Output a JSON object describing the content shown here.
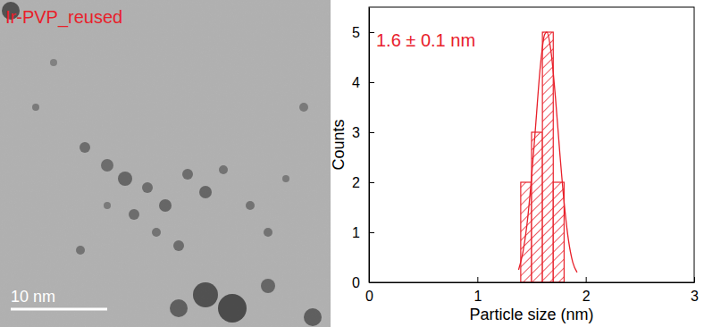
{
  "chart_data": [
    {
      "type": "image",
      "title": "Ir-PVP_reused",
      "scale_bar_label": "10 nm",
      "color": "#e8202a"
    },
    {
      "type": "histogram",
      "annotation": "1.6 ± 0.1 nm",
      "x_label": "Particle size (nm)",
      "y_label": "Counts",
      "bins": [
        1.4,
        1.5,
        1.6,
        1.7,
        1.8
      ],
      "values": [
        2,
        3,
        5,
        2
      ],
      "fit": {
        "x": [
          1.38,
          1.42,
          1.46,
          1.5,
          1.54,
          1.58,
          1.62,
          1.64,
          1.68,
          1.72,
          1.76,
          1.8,
          1.84,
          1.88,
          1.92
        ],
        "y": [
          0.25,
          0.6,
          1.2,
          2.1,
          3.2,
          4.3,
          4.95,
          5.0,
          4.6,
          3.7,
          2.6,
          1.6,
          0.85,
          0.4,
          0.2
        ]
      },
      "color": "#e8202a",
      "xlim": [
        0,
        3
      ],
      "xticks": [
        0,
        1,
        2,
        3
      ],
      "ylim": [
        0,
        5.5
      ],
      "yticks": [
        0,
        1,
        2,
        3,
        4,
        5
      ],
      "grid": false
    }
  ]
}
